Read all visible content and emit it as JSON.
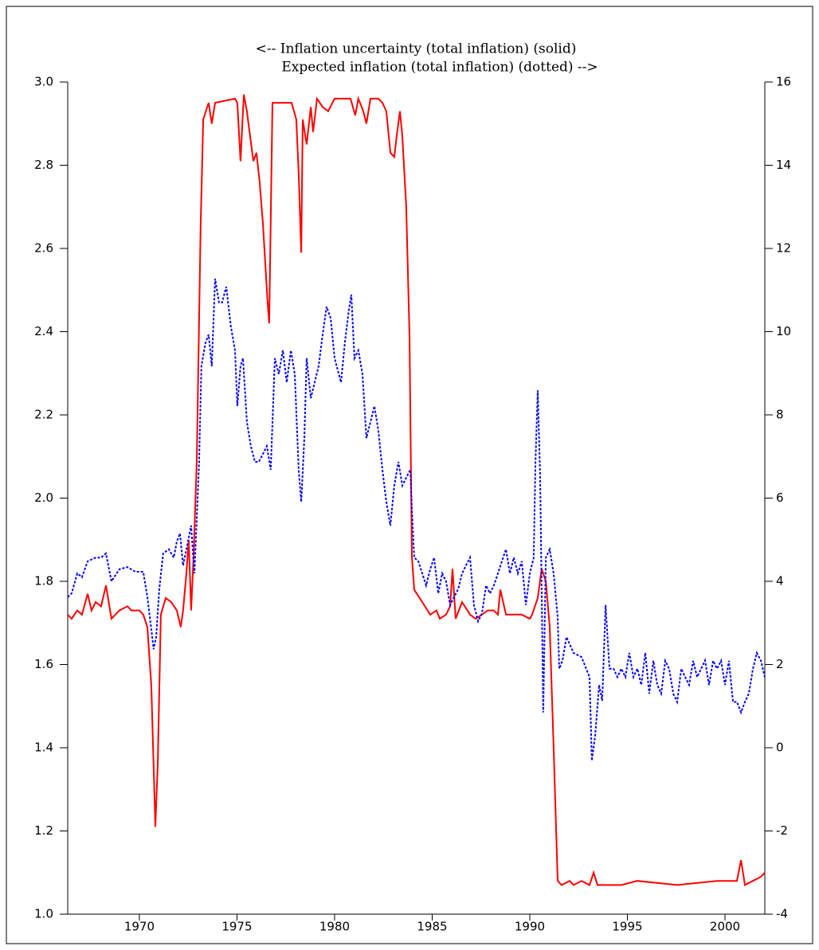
{
  "chart_data": {
    "type": "line",
    "title": [
      "<--  Inflation uncertainty (total inflation) (solid)",
      "Expected inflation (total inflation) (dotted)  -->"
    ],
    "xlim": [
      1966.33,
      2002.04
    ],
    "xticks": [
      1970,
      1975,
      1980,
      1985,
      1990,
      1995,
      2000
    ],
    "ylim": [
      1.0,
      3.0
    ],
    "yticks": [
      {
        "value": 1,
        "label": "1.0"
      },
      1.2,
      1.4,
      1.6,
      1.8,
      {
        "value": 2,
        "label": "2.0"
      },
      2.2,
      2.4,
      2.6,
      2.8,
      {
        "value": 3,
        "label": "3.0"
      }
    ],
    "y2lim": [
      -4,
      16
    ],
    "y2ticks": [
      -4,
      -2,
      0,
      2,
      4,
      6,
      8,
      10,
      12,
      14,
      16
    ],
    "series": [
      {
        "color": "#ff0000",
        "style": "solid",
        "axis": "y",
        "x": [
          1966.33,
          1966.53,
          1966.82,
          1967.06,
          1967.35,
          1967.55,
          1967.76,
          1968.04,
          1968.29,
          1968.57,
          1968.98,
          1969.39,
          1969.59,
          1970.0,
          1970.2,
          1970.41,
          1970.61,
          1970.82,
          1970.94,
          1971.1,
          1971.35,
          1971.63,
          1971.92,
          1972.12,
          1972.24,
          1972.41,
          1972.53,
          1972.65,
          1972.78,
          1972.94,
          1973.14,
          1973.27,
          1973.55,
          1973.71,
          1973.88,
          1974.9,
          1975.02,
          1975.18,
          1975.35,
          1975.51,
          1975.67,
          1975.84,
          1976.0,
          1976.16,
          1976.33,
          1976.57,
          1976.65,
          1976.82,
          1977.55,
          1977.8,
          1978.04,
          1978.16,
          1978.29,
          1978.37,
          1978.57,
          1978.78,
          1978.9,
          1979.1,
          1979.39,
          1979.67,
          1980.0,
          1980.82,
          1981.06,
          1981.22,
          1981.47,
          1981.63,
          1981.84,
          1982.24,
          1982.45,
          1982.65,
          1982.86,
          1983.06,
          1983.18,
          1983.35,
          1983.47,
          1983.67,
          1983.84,
          1983.96,
          1984.08,
          1984.49,
          1984.9,
          1985.22,
          1985.39,
          1985.71,
          1985.92,
          1986.04,
          1986.2,
          1986.53,
          1986.94,
          1987.22,
          1987.55,
          1987.84,
          1988.16,
          1988.37,
          1988.49,
          1988.78,
          1989.18,
          1989.59,
          1990.0,
          1990.12,
          1990.41,
          1990.61,
          1990.82,
          1991.02,
          1991.22,
          1991.43,
          1991.63,
          1992.04,
          1992.24,
          1992.65,
          1993.06,
          1993.27,
          1993.47,
          1994.69,
          1995.51,
          1997.55,
          1999.59,
          2000.61,
          2000.82,
          2001.02,
          2001.43,
          2001.84,
          2002.04
        ],
        "values": [
          1.72,
          1.71,
          1.73,
          1.72,
          1.77,
          1.73,
          1.75,
          1.74,
          1.79,
          1.71,
          1.73,
          1.74,
          1.73,
          1.73,
          1.72,
          1.69,
          1.55,
          1.21,
          1.36,
          1.72,
          1.76,
          1.75,
          1.73,
          1.69,
          1.73,
          1.82,
          1.9,
          1.73,
          1.86,
          2.09,
          2.66,
          2.91,
          2.95,
          2.9,
          2.95,
          2.96,
          2.95,
          2.81,
          2.97,
          2.93,
          2.87,
          2.81,
          2.83,
          2.76,
          2.66,
          2.47,
          2.42,
          2.95,
          2.95,
          2.95,
          2.91,
          2.78,
          2.59,
          2.91,
          2.85,
          2.94,
          2.88,
          2.96,
          2.94,
          2.93,
          2.96,
          2.96,
          2.92,
          2.96,
          2.93,
          2.9,
          2.96,
          2.96,
          2.95,
          2.93,
          2.83,
          2.82,
          2.87,
          2.93,
          2.87,
          2.7,
          2.39,
          1.86,
          1.78,
          1.75,
          1.72,
          1.73,
          1.71,
          1.72,
          1.74,
          1.83,
          1.71,
          1.75,
          1.72,
          1.71,
          1.72,
          1.73,
          1.73,
          1.72,
          1.78,
          1.72,
          1.72,
          1.72,
          1.71,
          1.72,
          1.76,
          1.83,
          1.8,
          1.69,
          1.4,
          1.08,
          1.07,
          1.08,
          1.07,
          1.08,
          1.07,
          1.1,
          1.07,
          1.07,
          1.08,
          1.07,
          1.08,
          1.08,
          1.13,
          1.07,
          1.08,
          1.09,
          1.1
        ]
      },
      {
        "color": "#0000ff",
        "style": "dotted",
        "axis": "y2",
        "x": [
          1966.33,
          1966.53,
          1966.82,
          1967.06,
          1967.35,
          1967.76,
          1968.04,
          1968.29,
          1968.57,
          1968.98,
          1969.39,
          1969.8,
          1970.2,
          1970.41,
          1970.61,
          1970.73,
          1970.86,
          1971.02,
          1971.22,
          1971.51,
          1971.76,
          1971.92,
          1972.08,
          1972.24,
          1972.41,
          1972.65,
          1972.82,
          1972.94,
          1973.06,
          1973.18,
          1973.39,
          1973.55,
          1973.71,
          1973.88,
          1974.08,
          1974.24,
          1974.45,
          1974.69,
          1974.9,
          1975.02,
          1975.18,
          1975.31,
          1975.51,
          1975.71,
          1975.92,
          1976.12,
          1976.33,
          1976.53,
          1976.73,
          1976.94,
          1977.14,
          1977.35,
          1977.55,
          1977.76,
          1977.96,
          1978.16,
          1978.29,
          1978.45,
          1978.57,
          1978.78,
          1978.98,
          1979.18,
          1979.39,
          1979.59,
          1979.8,
          1980.0,
          1980.33,
          1980.53,
          1980.73,
          1980.86,
          1981.02,
          1981.22,
          1981.43,
          1981.63,
          1981.84,
          1982.04,
          1982.24,
          1982.45,
          1982.65,
          1982.86,
          1983.06,
          1983.27,
          1983.47,
          1983.67,
          1983.88,
          1983.96,
          1984.08,
          1984.29,
          1984.49,
          1984.69,
          1984.9,
          1985.1,
          1985.31,
          1985.51,
          1985.71,
          1985.92,
          1986.12,
          1986.33,
          1986.53,
          1986.73,
          1986.94,
          1987.14,
          1987.35,
          1987.55,
          1987.76,
          1987.96,
          1988.16,
          1988.37,
          1988.57,
          1988.78,
          1988.98,
          1989.18,
          1989.39,
          1989.59,
          1989.8,
          1990.0,
          1990.2,
          1990.29,
          1990.41,
          1990.53,
          1990.69,
          1990.82,
          1991.02,
          1991.22,
          1991.43,
          1991.51,
          1991.67,
          1991.88,
          1992.24,
          1992.65,
          1993.06,
          1993.18,
          1993.35,
          1993.55,
          1993.71,
          1993.88,
          1994.08,
          1994.29,
          1994.49,
          1994.69,
          1994.9,
          1995.1,
          1995.31,
          1995.51,
          1995.71,
          1995.92,
          1996.12,
          1996.33,
          1996.53,
          1996.73,
          1996.94,
          1997.14,
          1997.35,
          1997.55,
          1997.76,
          1997.96,
          1998.16,
          1998.37,
          1998.57,
          1998.78,
          1998.98,
          1999.18,
          1999.39,
          1999.59,
          1999.8,
          2000.0,
          2000.2,
          2000.41,
          2000.61,
          2000.82,
          2001.02,
          2001.22,
          2001.43,
          2001.63,
          2001.84,
          2002.04
        ],
        "values": [
          3.62,
          3.71,
          4.19,
          4.1,
          4.48,
          4.57,
          4.57,
          4.67,
          4.0,
          4.29,
          4.34,
          4.23,
          4.23,
          3.62,
          2.85,
          2.37,
          2.66,
          3.81,
          4.67,
          4.77,
          4.57,
          4.96,
          5.15,
          4.38,
          4.77,
          5.34,
          4.19,
          5.53,
          6.87,
          9.17,
          9.74,
          9.93,
          9.17,
          11.27,
          10.7,
          10.7,
          11.08,
          10.12,
          9.55,
          8.21,
          9.17,
          9.36,
          7.83,
          7.25,
          6.87,
          6.87,
          7.06,
          7.25,
          6.68,
          9.36,
          8.98,
          9.55,
          8.78,
          9.55,
          8.98,
          6.68,
          5.91,
          7.44,
          9.36,
          8.4,
          8.78,
          9.17,
          9.93,
          10.6,
          10.32,
          9.36,
          8.78,
          9.74,
          10.51,
          10.89,
          9.36,
          9.55,
          8.98,
          7.44,
          7.83,
          8.21,
          7.64,
          6.68,
          5.91,
          5.34,
          6.3,
          6.87,
          6.3,
          6.49,
          6.68,
          5.72,
          4.57,
          4.48,
          4.19,
          3.9,
          4.29,
          4.57,
          3.71,
          4.19,
          4.0,
          3.43,
          3.62,
          3.81,
          4.19,
          4.38,
          4.57,
          3.43,
          3.04,
          3.23,
          3.9,
          3.71,
          3.9,
          4.19,
          4.48,
          4.77,
          4.19,
          4.57,
          4.19,
          4.48,
          3.43,
          4.19,
          4.57,
          6.87,
          8.59,
          6.49,
          0.85,
          4.57,
          4.77,
          4.19,
          3.14,
          1.9,
          2.09,
          2.66,
          2.28,
          2.18,
          1.7,
          -0.31,
          0.3,
          1.51,
          1.13,
          3.43,
          1.9,
          1.9,
          1.7,
          1.9,
          1.7,
          2.28,
          1.7,
          1.9,
          1.51,
          2.28,
          1.3,
          2.09,
          1.51,
          1.3,
          2.09,
          1.9,
          1.3,
          1.1,
          1.9,
          1.7,
          1.51,
          2.09,
          1.7,
          1.9,
          2.1,
          1.51,
          2.09,
          1.9,
          2.09,
          1.51,
          2.09,
          1.1,
          1.1,
          0.85,
          1.1,
          1.3,
          1.9,
          2.28,
          2.09,
          1.7
        ]
      }
    ]
  }
}
